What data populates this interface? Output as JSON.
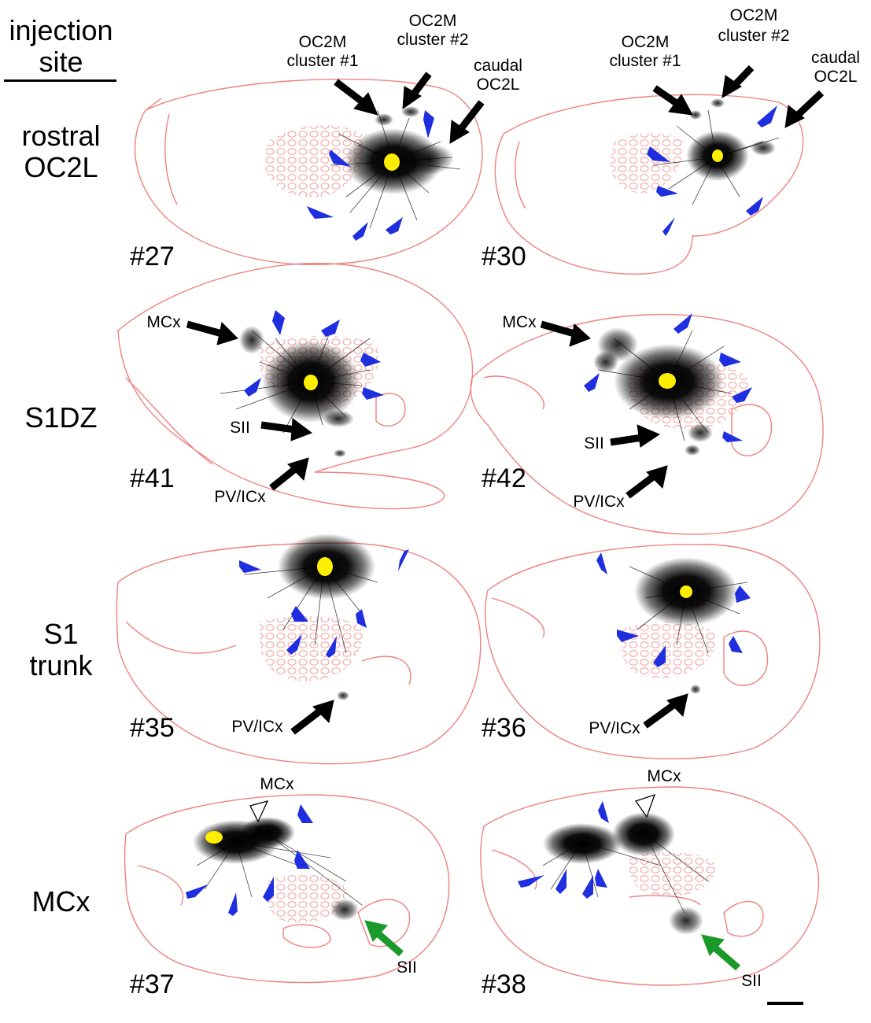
{
  "header": {
    "line1": "injection",
    "line2": "site"
  },
  "rows": [
    {
      "label_line1": "rostral",
      "label_line2": "OC2L",
      "panels": [
        {
          "case": "#27",
          "labels": {
            "oc2m1_a": "OC2M",
            "oc2m1_b": "cluster #1",
            "oc2m2_a": "OC2M",
            "oc2m2_b": "cluster #2",
            "caudal_a": "caudal",
            "caudal_b": "OC2L"
          }
        },
        {
          "case": "#30",
          "labels": {
            "oc2m1_a": "OC2M",
            "oc2m1_b": "cluster #1",
            "oc2m2_a": "OC2M",
            "oc2m2_b": "cluster #2",
            "caudal_a": "caudal",
            "caudal_b": "OC2L"
          }
        }
      ]
    },
    {
      "label_line1": "S1DZ",
      "label_line2": "",
      "panels": [
        {
          "case": "#41",
          "labels": {
            "mcx": "MCx",
            "sii": "SII",
            "pvicx": "PV/ICx"
          }
        },
        {
          "case": "#42",
          "labels": {
            "mcx": "MCx",
            "sii": "SII",
            "pvicx": "PV/ICx"
          }
        }
      ]
    },
    {
      "label_line1": "S1",
      "label_line2": "trunk",
      "panels": [
        {
          "case": "#35",
          "labels": {
            "pvicx": "PV/ICx"
          }
        },
        {
          "case": "#36",
          "labels": {
            "pvicx": "PV/ICx"
          }
        }
      ]
    },
    {
      "label_line1": "MCx",
      "label_line2": "",
      "panels": [
        {
          "case": "#37",
          "labels": {
            "mcx": "MCx",
            "sii": "SII"
          }
        },
        {
          "case": "#38",
          "labels": {
            "mcx": "MCx",
            "sii": "SII"
          }
        }
      ]
    }
  ],
  "colors": {
    "outline": "#f08080",
    "barrels": "#f4a6a6",
    "label": "#111111",
    "injection": "#ffee00",
    "blue_arrowhead": "#1f2fe0",
    "black_arrow": "#000000",
    "green_arrow": "#1a9a2a",
    "open_arrowhead": "#ffffff"
  },
  "icons": [
    "black-arrow-icon",
    "blue-arrowhead-icon",
    "green-arrow-icon",
    "open-arrowhead-icon",
    "scale-bar"
  ]
}
